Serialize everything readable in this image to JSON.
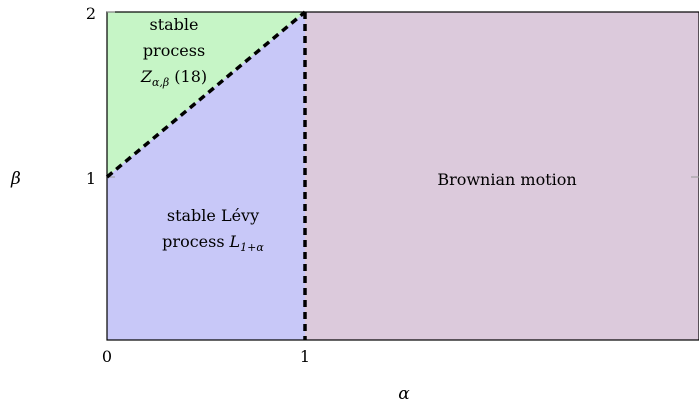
{
  "axes": {
    "x_label": "α",
    "y_label": "β",
    "x_ticks": [
      "0",
      "1"
    ],
    "y_ticks": [
      "1",
      "2"
    ]
  },
  "regions": {
    "stable_process": {
      "line1": "stable",
      "line2": "process",
      "line3_symbol": "Z",
      "line3_sub": "α,β",
      "line3_ref": "(18)",
      "color": "#c6f5c6"
    },
    "stable_levy": {
      "line1": "stable Lévy",
      "line2_text": "process",
      "line2_symbol": "L",
      "line2_sub": "1+α",
      "color": "#c8c8f8"
    },
    "brownian": {
      "label": "Brownian motion",
      "color": "#dccadc"
    }
  },
  "boundary_style": {
    "color": "#000000",
    "dashed": true
  }
}
